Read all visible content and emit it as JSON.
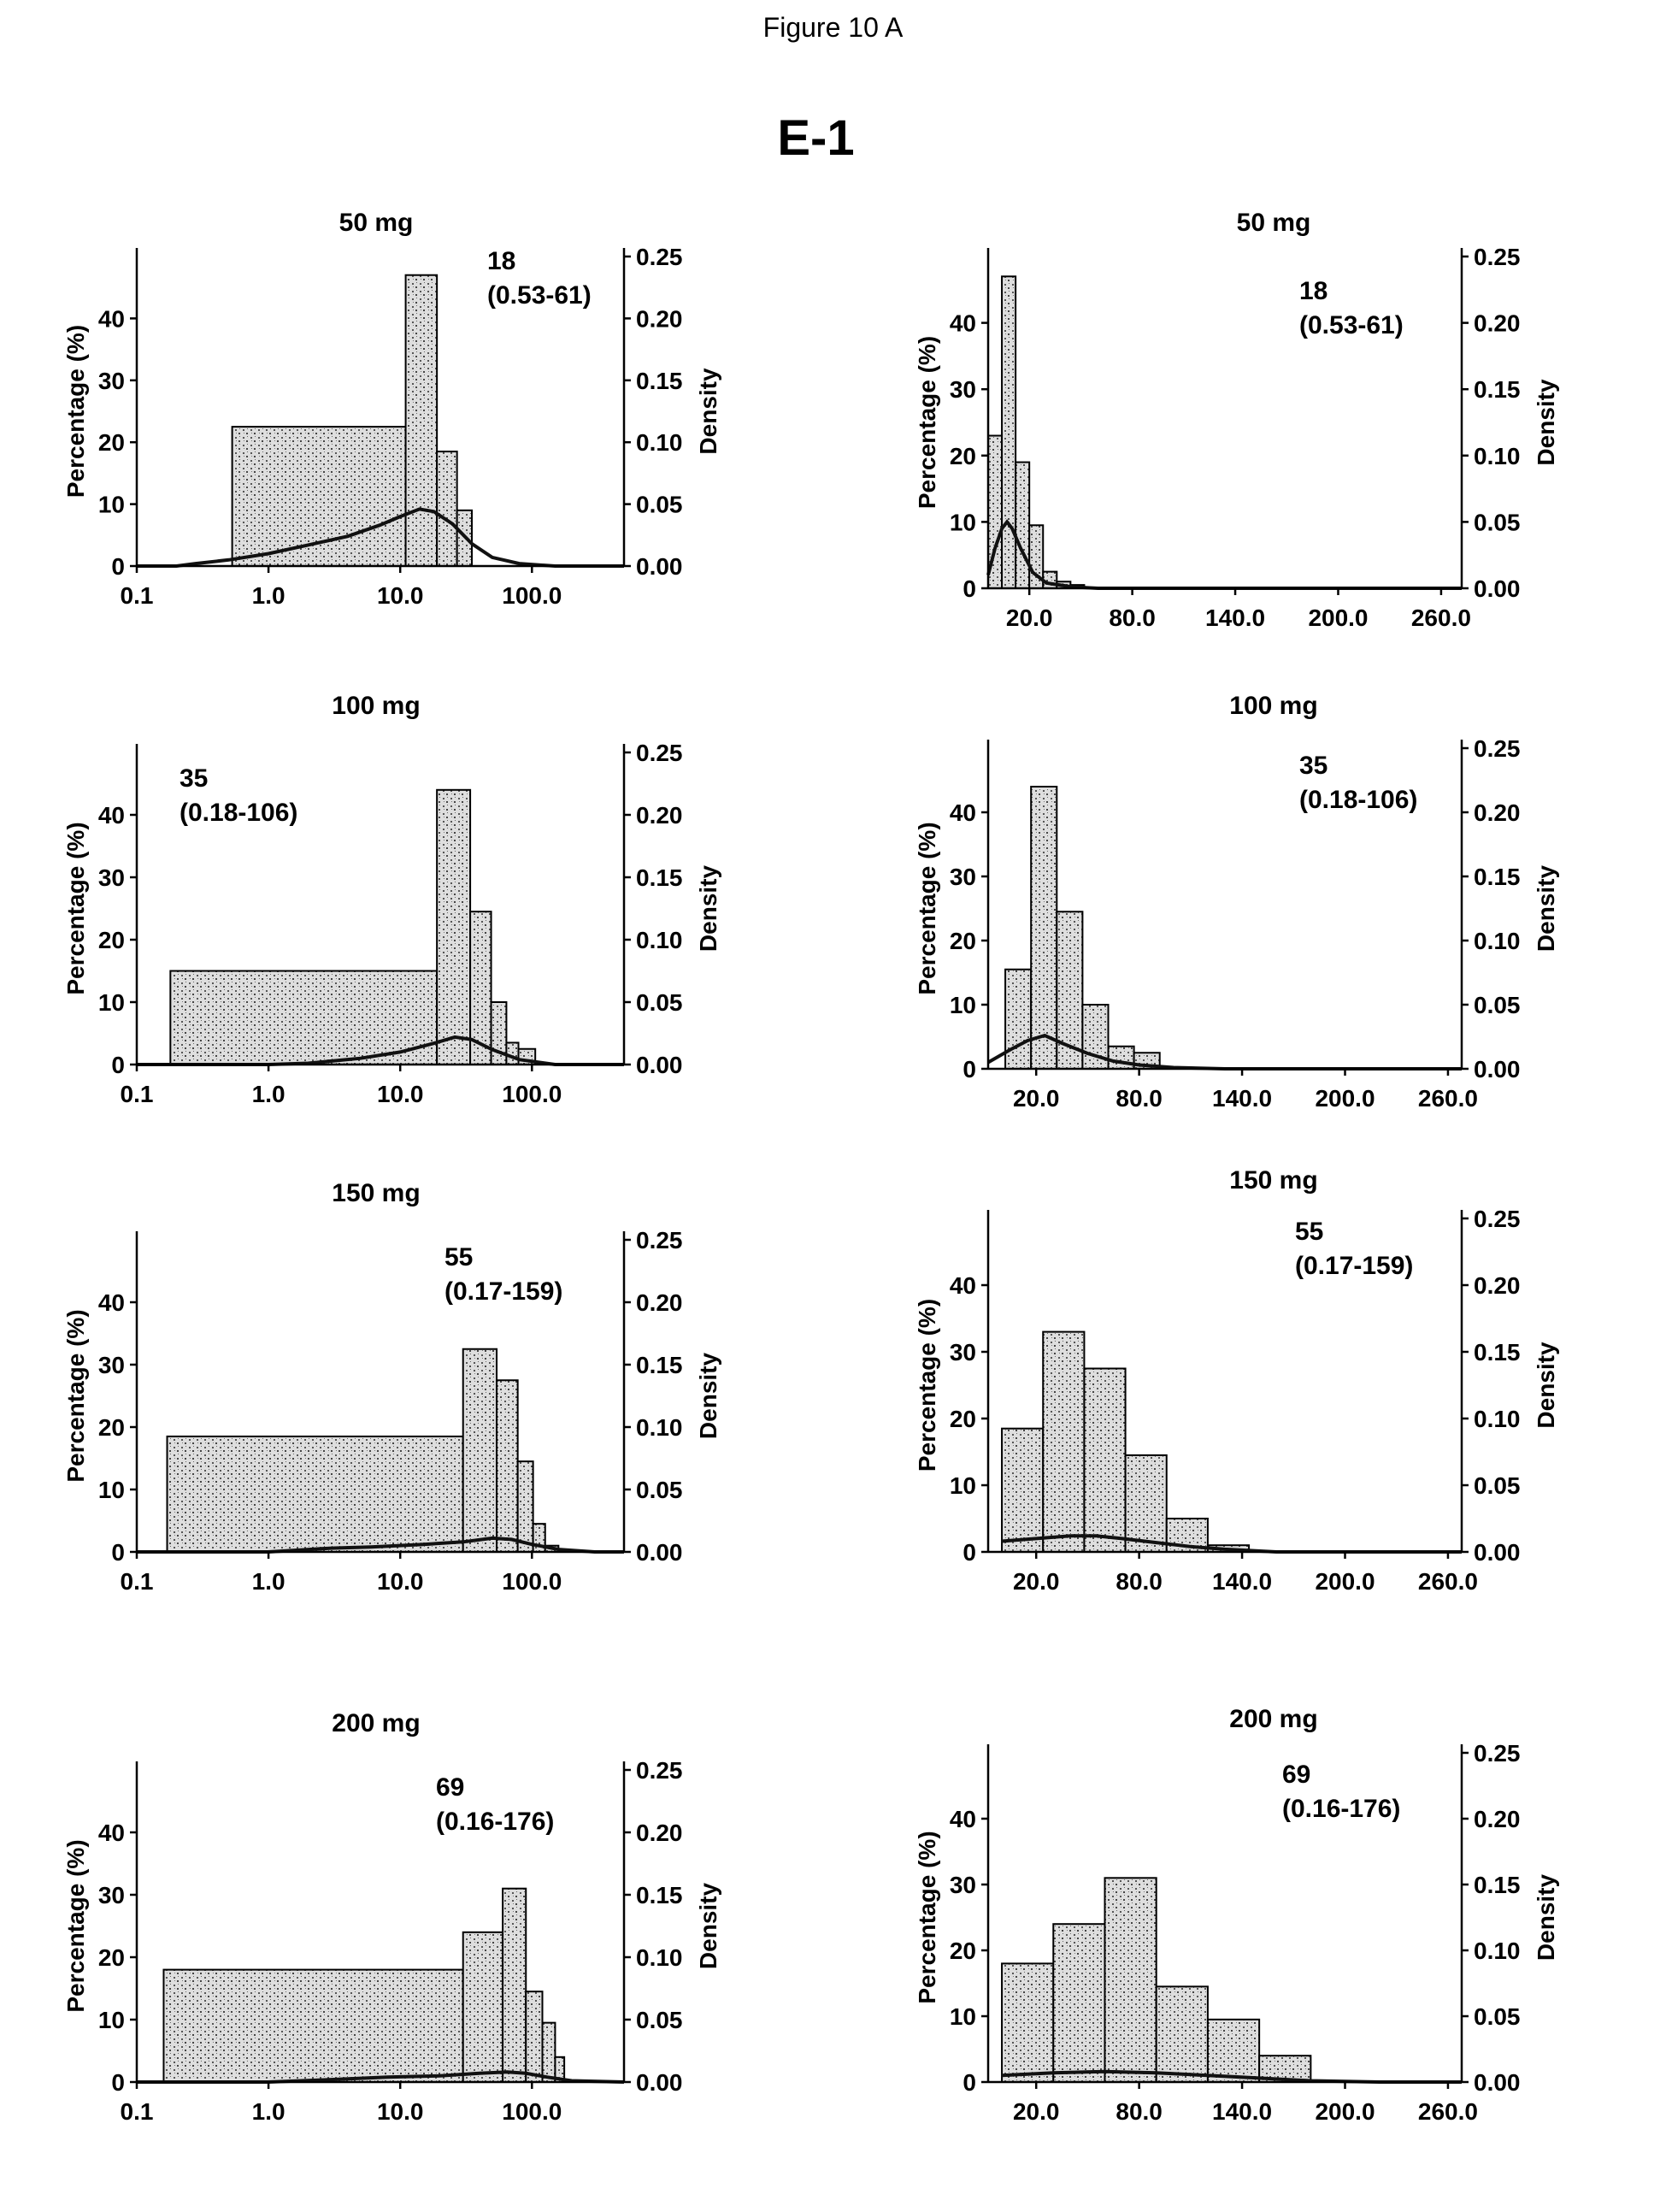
{
  "figure": {
    "title": "Figure 10 A",
    "subtitle": "E-1"
  },
  "axis_text": {
    "left_label": "Percentage (%)",
    "right_label": "Density",
    "left_ticks": [
      "0",
      "10",
      "20",
      "30",
      "40"
    ],
    "right_ticks": [
      "0.00",
      "0.05",
      "0.10",
      "0.15",
      "0.20",
      "0.25"
    ],
    "log_x_ticks": [
      "0.1",
      "1.0",
      "10.0",
      "100.0"
    ],
    "lin_x_ticks": [
      "20.0",
      "80.0",
      "140.0",
      "200.0",
      "260.0"
    ]
  },
  "chart_data": [
    {
      "type": "bar",
      "scale": "log",
      "title": "50 mg",
      "annotation": [
        "18",
        "(0.53-61)"
      ],
      "xlim": [
        0.1,
        500
      ],
      "ylim": [
        0,
        50
      ],
      "y2lim": [
        0,
        0.25
      ],
      "bins": [
        {
          "from": 0.53,
          "to": 11,
          "value": 22.5
        },
        {
          "from": 11,
          "to": 19,
          "value": 47
        },
        {
          "from": 19,
          "to": 27,
          "value": 18.5
        },
        {
          "from": 27,
          "to": 35,
          "value": 9
        }
      ],
      "density": [
        [
          0.1,
          0
        ],
        [
          0.2,
          0
        ],
        [
          0.28,
          0.002
        ],
        [
          0.5,
          0.005
        ],
        [
          1,
          0.01
        ],
        [
          2,
          0.017
        ],
        [
          4,
          0.024
        ],
        [
          7,
          0.033
        ],
        [
          10,
          0.04
        ],
        [
          14,
          0.046
        ],
        [
          18,
          0.044
        ],
        [
          25,
          0.034
        ],
        [
          35,
          0.018
        ],
        [
          50,
          0.007
        ],
        [
          80,
          0.002
        ],
        [
          150,
          0
        ],
        [
          500,
          0
        ]
      ]
    },
    {
      "type": "bar",
      "scale": "linear",
      "title": "50 mg",
      "annotation": [
        "18",
        "(0.53-61)"
      ],
      "xlim": [
        -4,
        272
      ],
      "ylim": [
        0,
        50
      ],
      "y2lim": [
        0,
        0.25
      ],
      "bins": [
        {
          "from": -4,
          "to": 4,
          "value": 23
        },
        {
          "from": 4,
          "to": 12,
          "value": 47
        },
        {
          "from": 12,
          "to": 20,
          "value": 19
        },
        {
          "from": 20,
          "to": 28,
          "value": 9.5
        },
        {
          "from": 28,
          "to": 36,
          "value": 2.5
        },
        {
          "from": 36,
          "to": 44,
          "value": 1
        },
        {
          "from": 44,
          "to": 52,
          "value": 0.5
        }
      ],
      "density": [
        [
          -4,
          0.01
        ],
        [
          0,
          0.03
        ],
        [
          4,
          0.045
        ],
        [
          7,
          0.05
        ],
        [
          10,
          0.045
        ],
        [
          15,
          0.03
        ],
        [
          22,
          0.012
        ],
        [
          30,
          0.004
        ],
        [
          45,
          0.001
        ],
        [
          60,
          0
        ],
        [
          272,
          0
        ]
      ]
    },
    {
      "type": "bar",
      "scale": "log",
      "title": "100 mg",
      "annotation": [
        "35",
        "(0.18-106)"
      ],
      "xlim": [
        0.1,
        500
      ],
      "ylim": [
        0,
        50
      ],
      "y2lim": [
        0,
        0.25
      ],
      "bins": [
        {
          "from": 0.18,
          "to": 19,
          "value": 15
        },
        {
          "from": 19,
          "to": 34,
          "value": 44
        },
        {
          "from": 34,
          "to": 49,
          "value": 24.5
        },
        {
          "from": 49,
          "to": 64,
          "value": 10
        },
        {
          "from": 64,
          "to": 79,
          "value": 3.5
        },
        {
          "from": 79,
          "to": 106,
          "value": 2.5
        }
      ],
      "density": [
        [
          0.1,
          0
        ],
        [
          1,
          0
        ],
        [
          2,
          0.001
        ],
        [
          5,
          0.005
        ],
        [
          10,
          0.01
        ],
        [
          18,
          0.017
        ],
        [
          26,
          0.022
        ],
        [
          35,
          0.02
        ],
        [
          50,
          0.012
        ],
        [
          80,
          0.004
        ],
        [
          150,
          0
        ],
        [
          500,
          0
        ]
      ]
    },
    {
      "type": "bar",
      "scale": "linear",
      "title": "100 mg",
      "annotation": [
        "35",
        "(0.18-106)"
      ],
      "xlim": [
        -8,
        268
      ],
      "ylim": [
        0,
        50
      ],
      "y2lim": [
        0,
        0.25
      ],
      "bins": [
        {
          "from": 2,
          "to": 17,
          "value": 15.5
        },
        {
          "from": 17,
          "to": 32,
          "value": 44
        },
        {
          "from": 32,
          "to": 47,
          "value": 24.5
        },
        {
          "from": 47,
          "to": 62,
          "value": 10
        },
        {
          "from": 62,
          "to": 77,
          "value": 3.5
        },
        {
          "from": 77,
          "to": 92,
          "value": 2.5
        }
      ],
      "density": [
        [
          -8,
          0.005
        ],
        [
          5,
          0.015
        ],
        [
          15,
          0.022
        ],
        [
          25,
          0.026
        ],
        [
          35,
          0.02
        ],
        [
          50,
          0.012
        ],
        [
          65,
          0.006
        ],
        [
          80,
          0.003
        ],
        [
          100,
          0.001
        ],
        [
          130,
          0
        ],
        [
          268,
          0
        ]
      ]
    },
    {
      "type": "bar",
      "scale": "log",
      "title": "150 mg",
      "annotation": [
        "55",
        "(0.17-159)"
      ],
      "xlim": [
        0.1,
        500
      ],
      "ylim": [
        0,
        50
      ],
      "y2lim": [
        0,
        0.25
      ],
      "bins": [
        {
          "from": 0.17,
          "to": 30,
          "value": 18.5
        },
        {
          "from": 30,
          "to": 54,
          "value": 32.5
        },
        {
          "from": 54,
          "to": 78,
          "value": 27.5
        },
        {
          "from": 78,
          "to": 102,
          "value": 14.5
        },
        {
          "from": 102,
          "to": 126,
          "value": 4.5
        },
        {
          "from": 126,
          "to": 159,
          "value": 1
        }
      ],
      "density": [
        [
          0.1,
          0
        ],
        [
          1,
          0
        ],
        [
          3,
          0.003
        ],
        [
          6,
          0.004
        ],
        [
          15,
          0.006
        ],
        [
          30,
          0.008
        ],
        [
          50,
          0.011
        ],
        [
          70,
          0.01
        ],
        [
          100,
          0.006
        ],
        [
          160,
          0.002
        ],
        [
          300,
          0
        ],
        [
          500,
          0
        ]
      ]
    },
    {
      "type": "bar",
      "scale": "linear",
      "title": "150 mg",
      "annotation": [
        "55",
        "(0.17-159)"
      ],
      "xlim": [
        -8,
        268
      ],
      "ylim": [
        0,
        50
      ],
      "y2lim": [
        0,
        0.25
      ],
      "bins": [
        {
          "from": 0,
          "to": 24,
          "value": 18.5
        },
        {
          "from": 24,
          "to": 48,
          "value": 33
        },
        {
          "from": 48,
          "to": 72,
          "value": 27.5
        },
        {
          "from": 72,
          "to": 96,
          "value": 14.5
        },
        {
          "from": 96,
          "to": 120,
          "value": 5
        },
        {
          "from": 120,
          "to": 144,
          "value": 1
        }
      ],
      "density": [
        [
          0,
          0.008
        ],
        [
          20,
          0.01
        ],
        [
          40,
          0.012
        ],
        [
          55,
          0.012
        ],
        [
          70,
          0.01
        ],
        [
          90,
          0.007
        ],
        [
          110,
          0.004
        ],
        [
          130,
          0.002
        ],
        [
          160,
          0
        ],
        [
          268,
          0
        ]
      ]
    },
    {
      "type": "bar",
      "scale": "log",
      "title": "200 mg",
      "annotation": [
        "69",
        "(0.16-176)"
      ],
      "xlim": [
        0.1,
        500
      ],
      "ylim": [
        0,
        50
      ],
      "y2lim": [
        0,
        0.25
      ],
      "bins": [
        {
          "from": 0.16,
          "to": 30,
          "value": 18
        },
        {
          "from": 30,
          "to": 60,
          "value": 24
        },
        {
          "from": 60,
          "to": 90,
          "value": 31
        },
        {
          "from": 90,
          "to": 120,
          "value": 14.5
        },
        {
          "from": 120,
          "to": 150,
          "value": 9.5
        },
        {
          "from": 150,
          "to": 176,
          "value": 4
        }
      ],
      "density": [
        [
          0.1,
          0
        ],
        [
          1,
          0
        ],
        [
          3,
          0.002
        ],
        [
          8,
          0.004
        ],
        [
          20,
          0.005
        ],
        [
          40,
          0.007
        ],
        [
          65,
          0.008
        ],
        [
          90,
          0.007
        ],
        [
          130,
          0.004
        ],
        [
          200,
          0.001
        ],
        [
          500,
          0
        ]
      ]
    },
    {
      "type": "bar",
      "scale": "linear",
      "title": "200 mg",
      "annotation": [
        "69",
        "(0.16-176)"
      ],
      "xlim": [
        -8,
        268
      ],
      "ylim": [
        0,
        50
      ],
      "y2lim": [
        0,
        0.25
      ],
      "bins": [
        {
          "from": 0,
          "to": 30,
          "value": 18
        },
        {
          "from": 30,
          "to": 60,
          "value": 24
        },
        {
          "from": 60,
          "to": 90,
          "value": 31
        },
        {
          "from": 90,
          "to": 120,
          "value": 14.5
        },
        {
          "from": 120,
          "to": 150,
          "value": 9.5
        },
        {
          "from": 150,
          "to": 180,
          "value": 4
        }
      ],
      "density": [
        [
          0,
          0.005
        ],
        [
          30,
          0.007
        ],
        [
          60,
          0.008
        ],
        [
          90,
          0.007
        ],
        [
          120,
          0.005
        ],
        [
          150,
          0.003
        ],
        [
          180,
          0.001
        ],
        [
          220,
          0
        ],
        [
          268,
          0
        ]
      ]
    }
  ]
}
